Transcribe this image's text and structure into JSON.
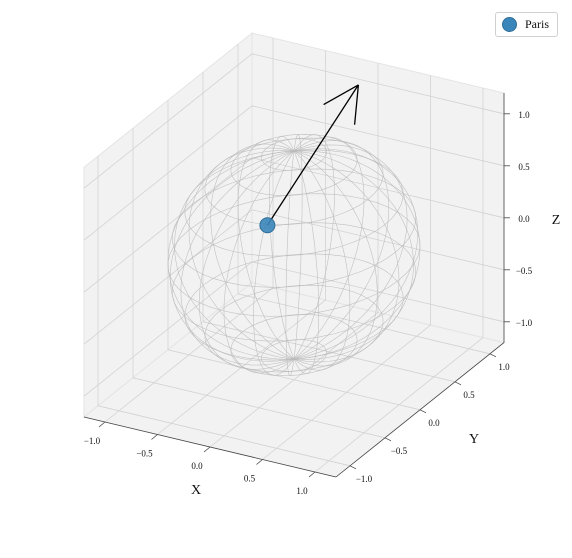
{
  "chart_data": {
    "type": "scatter",
    "projection": "3d",
    "title": "",
    "xlabel": "X",
    "ylabel": "Y",
    "zlabel": "Z",
    "xlim": [
      -1.2,
      1.2
    ],
    "ylim": [
      -1.2,
      1.2
    ],
    "zlim": [
      -1.2,
      1.2
    ],
    "xticks": [
      "−1.0",
      "−0.5",
      "0.0",
      "0.5",
      "1.0"
    ],
    "yticks": [
      "−1.0",
      "−0.5",
      "0.0",
      "0.5",
      "1.0"
    ],
    "zticks": [
      "−1.0",
      "−0.5",
      "0.0",
      "0.5",
      "1.0"
    ],
    "xtick_values": [
      -1.0,
      -0.5,
      0.0,
      0.5,
      1.0
    ],
    "ytick_values": [
      -1.0,
      -0.5,
      0.0,
      0.5,
      1.0
    ],
    "ztick_values": [
      -1.0,
      -0.5,
      0.0,
      0.5,
      1.0
    ],
    "grid": true,
    "legend_position": "top-right",
    "sphere": {
      "type": "wireframe",
      "radius": 1.0,
      "color": "#b8b8b8"
    },
    "series": [
      {
        "name": "Paris",
        "marker": "circle",
        "color": "#3a86ba",
        "points": [
          {
            "x": 0.2,
            "y": -0.68,
            "z": 0.7
          }
        ]
      }
    ],
    "vector": {
      "from": [
        0.2,
        -0.68,
        0.7
      ],
      "to": [
        0.2,
        0.62,
        1.35
      ],
      "color": "#000000"
    }
  }
}
